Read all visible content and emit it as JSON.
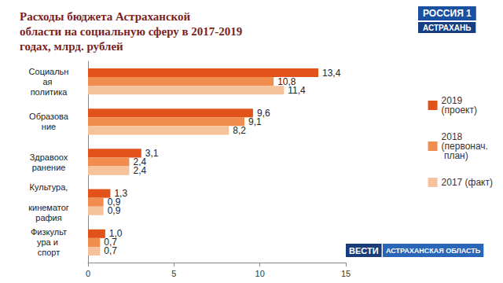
{
  "chart_data": {
    "type": "bar",
    "title": "Расходы бюджета Астраханской области на социальную сферу в 2017-2019 годах, млрд. рублей",
    "orientation": "horizontal",
    "categories": [
      "Социальная политика",
      "Образование",
      "Здравоохранение",
      "Культура, кинематография",
      "Физкультура и спорт"
    ],
    "series": [
      {
        "name": "2019 (проект)",
        "color": "#e2531c",
        "values": [
          13.4,
          9.6,
          3.1,
          1.3,
          1.0
        ],
        "value_labels": [
          "13,4",
          "9,6",
          "3,1",
          "1,3",
          "1,0"
        ]
      },
      {
        "name": "2018 (первонач. план)",
        "color": "#f08c4e",
        "values": [
          10.8,
          9.1,
          2.4,
          0.9,
          0.7
        ],
        "value_labels": [
          "10,8",
          "9,1",
          "2,4",
          "0,9",
          "0,7"
        ]
      },
      {
        "name": "2017 (факт)",
        "color": "#f6c29c",
        "values": [
          11.4,
          8.2,
          2.4,
          0.9,
          0.7
        ],
        "value_labels": [
          "11,4",
          "8,2",
          "2,4",
          "0,9",
          "0,7"
        ]
      }
    ],
    "xlim": [
      0,
      15
    ],
    "xticks": [
      0,
      5,
      10,
      15
    ],
    "grid": false,
    "legend": "right",
    "data_labels": true,
    "annotations": [
      "РОССИЯ 1",
      "АСТРАХАНЬ",
      "ВЕСТИ",
      "АСТРАХАНСКАЯ ОБЛАСТЬ"
    ]
  }
}
